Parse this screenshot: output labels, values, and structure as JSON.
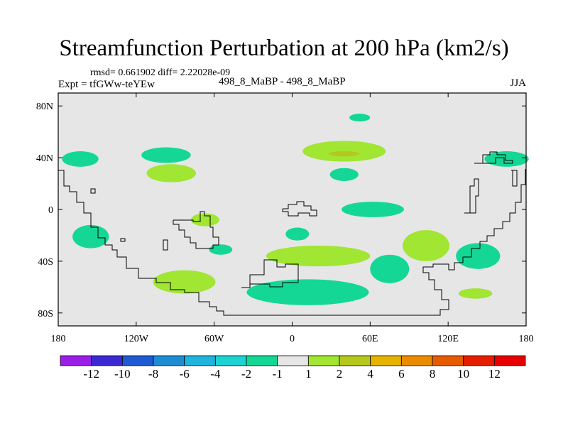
{
  "title": "Streamfunction Perturbation at 200 hPa (km2/s)",
  "stats": "rmsd= 0.661902 diff= 2.22028e-09",
  "experiment": "Expt = tfGWw-teYEw",
  "run_label": "498_8_MaBP - 498_8_MaBP",
  "season": "JJA",
  "chart_data": {
    "type": "heatmap",
    "title": "Streamfunction Perturbation at 200 hPa (km2/s)",
    "xlabel": "",
    "ylabel": "",
    "xlim": [
      -180,
      180
    ],
    "ylim": [
      -90,
      90
    ],
    "x_ticks": [
      {
        "value": -180,
        "label": "180"
      },
      {
        "value": -120,
        "label": "120W"
      },
      {
        "value": -60,
        "label": "60W"
      },
      {
        "value": 0,
        "label": "0"
      },
      {
        "value": 60,
        "label": "60E"
      },
      {
        "value": 120,
        "label": "120E"
      },
      {
        "value": 180,
        "label": "180"
      }
    ],
    "y_ticks": [
      {
        "value": 80,
        "label": "80N"
      },
      {
        "value": 40,
        "label": "40N"
      },
      {
        "value": 0,
        "label": "0"
      },
      {
        "value": -40,
        "label": "40S"
      },
      {
        "value": -80,
        "label": "80S"
      }
    ],
    "colorbar": {
      "labels": [
        "-12",
        "-10",
        "-8",
        "-6",
        "-4",
        "-2",
        "-1",
        "1",
        "2",
        "4",
        "6",
        "8",
        "10",
        "12"
      ],
      "colors": [
        "#9a1ee6",
        "#3c28d2",
        "#1e5ad2",
        "#1e8cd2",
        "#1eb4dc",
        "#1ed2d2",
        "#14d796",
        "#e6e6e6",
        "#a0e632",
        "#b4c81e",
        "#e6b400",
        "#eb8c00",
        "#e65a00",
        "#e61e00",
        "#e60000"
      ]
    },
    "background_color": "#e6e6e6",
    "anomaly_regions": [
      {
        "lon": -163,
        "lat": 39,
        "rlon": 14,
        "rlat": 6,
        "bin": "-2 to -1",
        "color": "#14d796"
      },
      {
        "lon": -97,
        "lat": 42,
        "rlon": 19,
        "rlat": 6,
        "bin": "-2 to -1",
        "color": "#14d796"
      },
      {
        "lon": -93,
        "lat": 28,
        "rlon": 19,
        "rlat": 7,
        "bin": "1 to 2",
        "color": "#a0e632"
      },
      {
        "lon": 52,
        "lat": 71,
        "rlon": 8,
        "rlat": 3,
        "bin": "-2 to -1",
        "color": "#14d796"
      },
      {
        "lon": 40,
        "lat": 45,
        "rlon": 32,
        "rlat": 8,
        "bin": "1 to 2",
        "color": "#a0e632"
      },
      {
        "lon": 40,
        "lat": 43,
        "rlon": 12,
        "rlat": 2,
        "bin": "2 to 4",
        "color": "#b4c81e"
      },
      {
        "lon": 40,
        "lat": 27,
        "rlon": 11,
        "rlat": 5,
        "bin": "-2 to -1",
        "color": "#14d796"
      },
      {
        "lon": 165,
        "lat": 39,
        "rlon": 17,
        "rlat": 6,
        "bin": "-2 to -1",
        "color": "#14d796"
      },
      {
        "lon": 62,
        "lat": 0,
        "rlon": 24,
        "rlat": 6,
        "bin": "-2 to -1",
        "color": "#14d796"
      },
      {
        "lon": 103,
        "lat": -28,
        "rlon": 18,
        "rlat": 12,
        "bin": "1 to 2",
        "color": "#a0e632"
      },
      {
        "lon": -155,
        "lat": -21,
        "rlon": 14,
        "rlat": 9,
        "bin": "-2 to -1",
        "color": "#14d796"
      },
      {
        "lon": -67,
        "lat": -8,
        "rlon": 11,
        "rlat": 5,
        "bin": "1 to 2",
        "color": "#a0e632"
      },
      {
        "lon": -55,
        "lat": -31,
        "rlon": 9,
        "rlat": 4,
        "bin": "-2 to -1",
        "color": "#14d796"
      },
      {
        "lon": 4,
        "lat": -19,
        "rlon": 9,
        "rlat": 5,
        "bin": "-2 to -1",
        "color": "#14d796"
      },
      {
        "lon": 20,
        "lat": -36,
        "rlon": 40,
        "rlat": 8,
        "bin": "1 to 2",
        "color": "#a0e632"
      },
      {
        "lon": 75,
        "lat": -46,
        "rlon": 15,
        "rlat": 11,
        "bin": "-2 to -1",
        "color": "#14d796"
      },
      {
        "lon": 143,
        "lat": -36,
        "rlon": 17,
        "rlat": 10,
        "bin": "-2 to -1",
        "color": "#14d796"
      },
      {
        "lon": -83,
        "lat": -56,
        "rlon": 24,
        "rlat": 9,
        "bin": "1 to 2",
        "color": "#a0e632"
      },
      {
        "lon": 12,
        "lat": -64,
        "rlon": 47,
        "rlat": 10,
        "bin": "-2 to -1",
        "color": "#14d796"
      },
      {
        "lon": 141,
        "lat": -65,
        "rlon": 13,
        "rlat": 4,
        "bin": "1 to 2",
        "color": "#a0e632"
      }
    ]
  }
}
